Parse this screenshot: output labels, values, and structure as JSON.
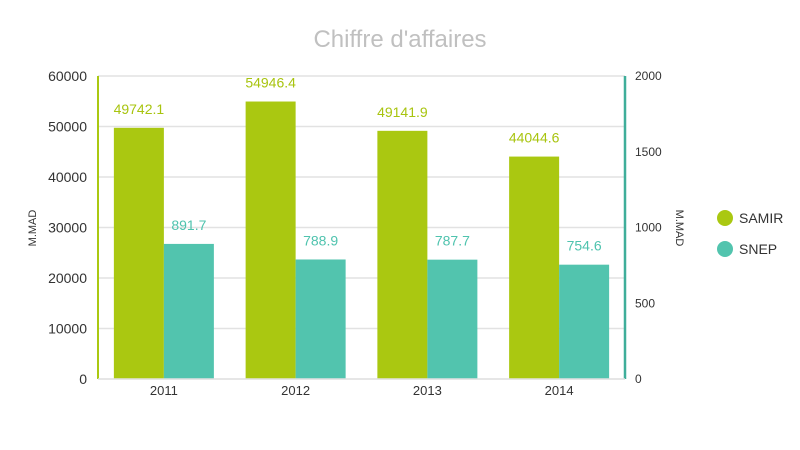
{
  "chart_data": {
    "type": "bar",
    "title": "Chiffre d'affaires",
    "categories": [
      "2011",
      "2012",
      "2013",
      "2014"
    ],
    "series": [
      {
        "name": "SAMIR",
        "axis": "left",
        "color": "#aac811",
        "values": [
          49742.1,
          54946.4,
          49141.9,
          44044.6
        ],
        "labels": [
          "49742.1",
          "54946.4",
          "49141.9",
          "44044.6"
        ]
      },
      {
        "name": "SNEP",
        "axis": "right",
        "color": "#52c4ae",
        "values": [
          891.7,
          788.9,
          787.7,
          754.6
        ],
        "labels": [
          "891.7",
          "788.9",
          "787.7",
          "754.6"
        ]
      }
    ],
    "xlabel": "",
    "ylabel": "M.MAD",
    "ylabel_right": "M.MAD",
    "ylim": [
      0,
      60000
    ],
    "ylim_right": [
      0,
      2000
    ],
    "yticks": [
      "0",
      "10000",
      "20000",
      "30000",
      "40000",
      "50000",
      "60000"
    ],
    "yticks_right": [
      "0",
      "500",
      "1000",
      "1500",
      "2000"
    ],
    "grid": true,
    "legend_position": "right"
  },
  "legend": {
    "items": [
      {
        "label": "SAMIR",
        "color": "#aac811"
      },
      {
        "label": "SNEP",
        "color": "#52c4ae"
      }
    ]
  }
}
